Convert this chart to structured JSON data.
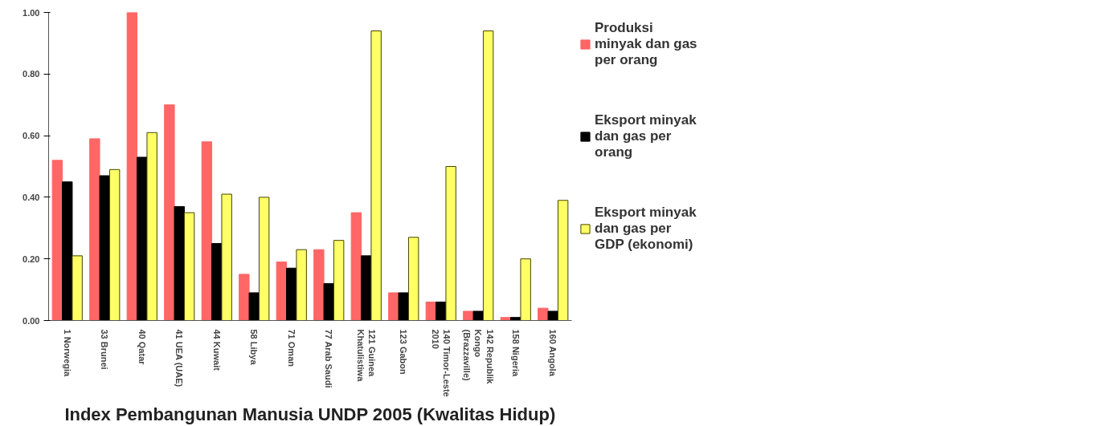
{
  "chart_data": {
    "type": "bar",
    "xlabel": "Index Pembangunan Manusia UNDP 2005 (Kwalitas Hidup)",
    "categories": [
      "1 Norwegia",
      "33 Brunei",
      "40 Qatar",
      "41 UEA (UAE)",
      "44 Kuwait",
      "58 Libya",
      "71 Oman",
      "77 Arab Saudi",
      "121 Guinea\nKhatulistiwa",
      "123 Gabon",
      "140 Timor-Leste\n2010",
      "142 Republik\nKongo\n(Brazzaville)",
      "158 Nigeria",
      "160 Angola"
    ],
    "series": [
      {
        "name": "Produksi minyak dan gas per orang",
        "color": "#ff6666",
        "values": [
          0.52,
          0.59,
          1.0,
          0.7,
          0.58,
          0.15,
          0.19,
          0.23,
          0.35,
          0.09,
          0.06,
          0.03,
          0.01,
          0.04
        ]
      },
      {
        "name": "Eksport minyak dan gas per orang",
        "color": "#000000",
        "values": [
          0.45,
          0.47,
          0.53,
          0.37,
          0.25,
          0.09,
          0.17,
          0.12,
          0.21,
          0.09,
          0.06,
          0.03,
          0.01,
          0.03
        ]
      },
      {
        "name": "Eksport minyak dan gas per GDP (ekonomi)",
        "color": "#ffff66",
        "values": [
          0.21,
          0.49,
          0.61,
          0.35,
          0.41,
          0.4,
          0.23,
          0.26,
          0.94,
          0.27,
          0.5,
          0.94,
          0.2,
          0.39
        ]
      }
    ],
    "ylim": [
      0,
      1.0
    ],
    "yticks": [
      {
        "value": 0,
        "label": "0.00"
      },
      {
        "value": 0.2,
        "label": "0.20"
      },
      {
        "value": 0.4,
        "label": "0.40"
      },
      {
        "value": 0.6,
        "label": "0.60"
      },
      {
        "value": 0.8,
        "label": "0.80"
      },
      {
        "value": 1.0,
        "label": "1.00"
      }
    ],
    "grid": false,
    "legend": "right"
  }
}
